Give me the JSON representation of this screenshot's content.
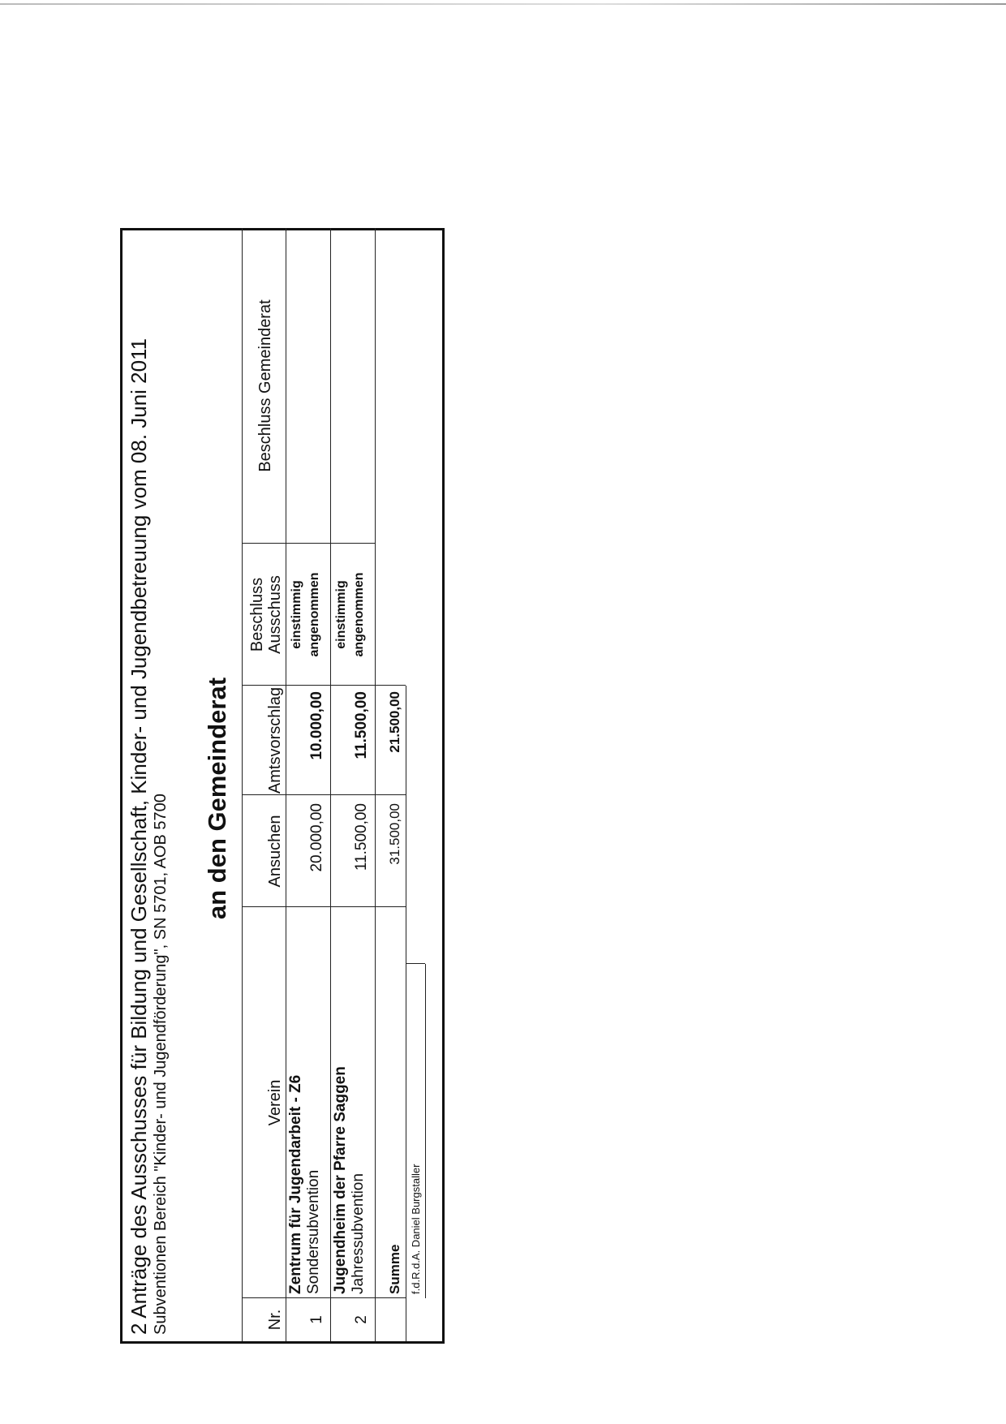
{
  "document": {
    "title": "2 Anträge des Ausschusses für Bildung und Gesellschaft, Kinder- und Jugendbetreuung vom 08. Juni 2011",
    "subtitle": "Subventionen Bereich \"Kinder- und Jugendförderung\", SN 5701, AOB 5700",
    "heading": "an den Gemeinderat"
  },
  "table": {
    "headers": {
      "nr": "Nr.",
      "verein": "Verein",
      "ansuchen": "Ansuchen",
      "amtsvorschlag": "Amtsvorschlag",
      "beschluss_ausschuss_line1": "Beschluss",
      "beschluss_ausschuss_line2": "Ausschuss",
      "beschluss_gemeinderat": "Beschluss Gemeinderat"
    },
    "rows": [
      {
        "nr": "1",
        "verein": "Zentrum für Jugendarbeit - Z6",
        "art": "Sondersubvention",
        "ansuchen": "20.000,00",
        "amtsvorschlag": "10.000,00",
        "ausschuss_line1": "einstimmig",
        "ausschuss_line2": "angenommen"
      },
      {
        "nr": "2",
        "verein": "Jugendheim der Pfarre Saggen",
        "art": "Jahressubvention",
        "ansuchen": "11.500,00",
        "amtsvorschlag": "11.500,00",
        "ausschuss_line1": "einstimmig",
        "ausschuss_line2": "angenommen"
      }
    ],
    "summe": {
      "label": "Summe",
      "ansuchen": "31.500,00",
      "amtsvorschlag": "21.500,00"
    },
    "signature": "f.d.R.d.A. Daniel Burgstaller"
  }
}
